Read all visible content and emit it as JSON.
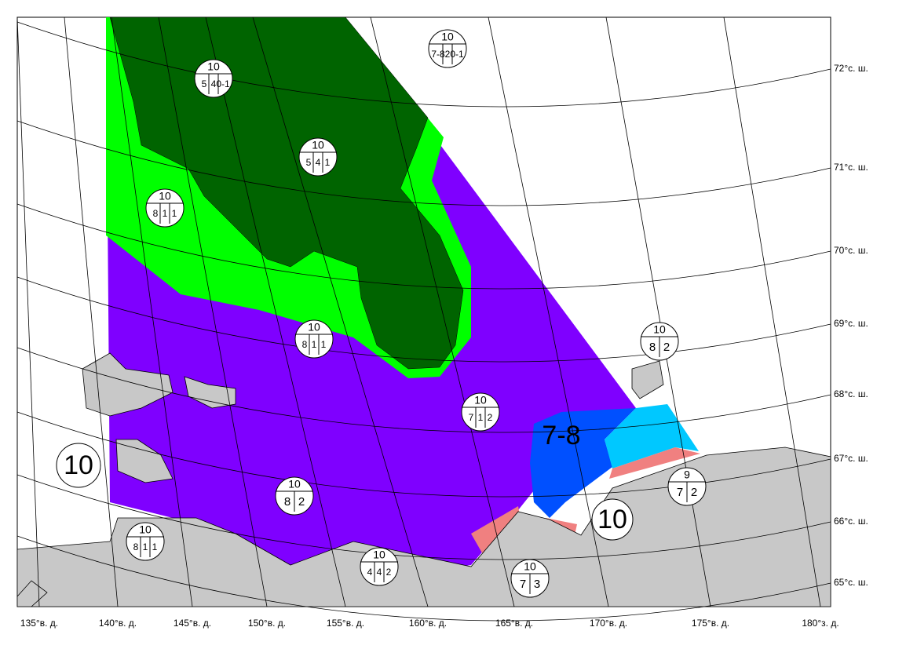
{
  "lat_labels": [
    "72°с. ш.",
    "71°с. ш.",
    "70°с. ш.",
    "69°с. ш.",
    "68°с. ш.",
    "67°с. ш.",
    "66°с. ш.",
    "65°с. ш."
  ],
  "lon_labels": [
    "135°в. д.",
    "140°в. д.",
    "145°в. д.",
    "150°в. д.",
    "155°в. д.",
    "160°в. д.",
    "165°в. д.",
    "170°в. д.",
    "175°в. д.",
    "180°з. д."
  ],
  "egg_codes": [
    {
      "total": "10",
      "parts": [
        "7-8",
        "2",
        "0-1"
      ]
    },
    {
      "total": "10",
      "parts": [
        "5",
        "4",
        "0-1"
      ]
    },
    {
      "total": "10",
      "parts": [
        "5",
        "4",
        "1"
      ]
    },
    {
      "total": "10",
      "parts": [
        "8",
        "1",
        "1"
      ]
    },
    {
      "total": "10",
      "parts": [
        "8",
        "1",
        "1"
      ]
    },
    {
      "total": "10",
      "parts": [
        "7",
        "1",
        "2"
      ]
    },
    {
      "total": "10",
      "parts": [
        "8",
        "2"
      ]
    },
    {
      "total": "10",
      "parts": [
        "8",
        "2"
      ]
    },
    {
      "total": "9",
      "parts": [
        "7",
        "2"
      ]
    },
    {
      "total": "10",
      "parts": [
        "8",
        "1",
        "1"
      ]
    },
    {
      "total": "10",
      "parts": [
        "4",
        "4",
        "2"
      ]
    },
    {
      "total": "10",
      "parts": [
        "7",
        "3"
      ]
    }
  ],
  "big_labels": [
    "10",
    "7-8",
    "10"
  ]
}
